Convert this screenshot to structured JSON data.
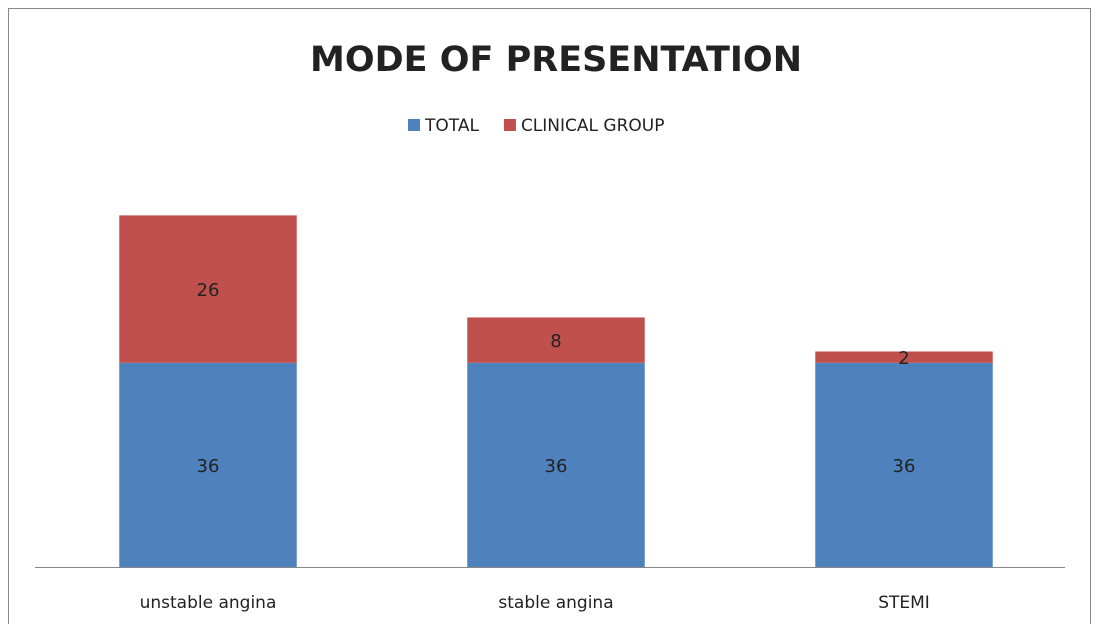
{
  "chart_data": {
    "type": "stacked_bar",
    "title": "MODE OF PRESENTATION",
    "categories": [
      "unstable angina",
      "stable angina",
      "STEMI"
    ],
    "series": [
      {
        "name": "TOTAL",
        "color": "#4f81bd",
        "values": [
          36,
          36,
          36
        ]
      },
      {
        "name": "CLINICAL GROUP",
        "color": "#c0504d",
        "values": [
          26,
          8,
          2
        ]
      }
    ],
    "ylim": [
      0,
      70
    ],
    "legend": "top"
  }
}
